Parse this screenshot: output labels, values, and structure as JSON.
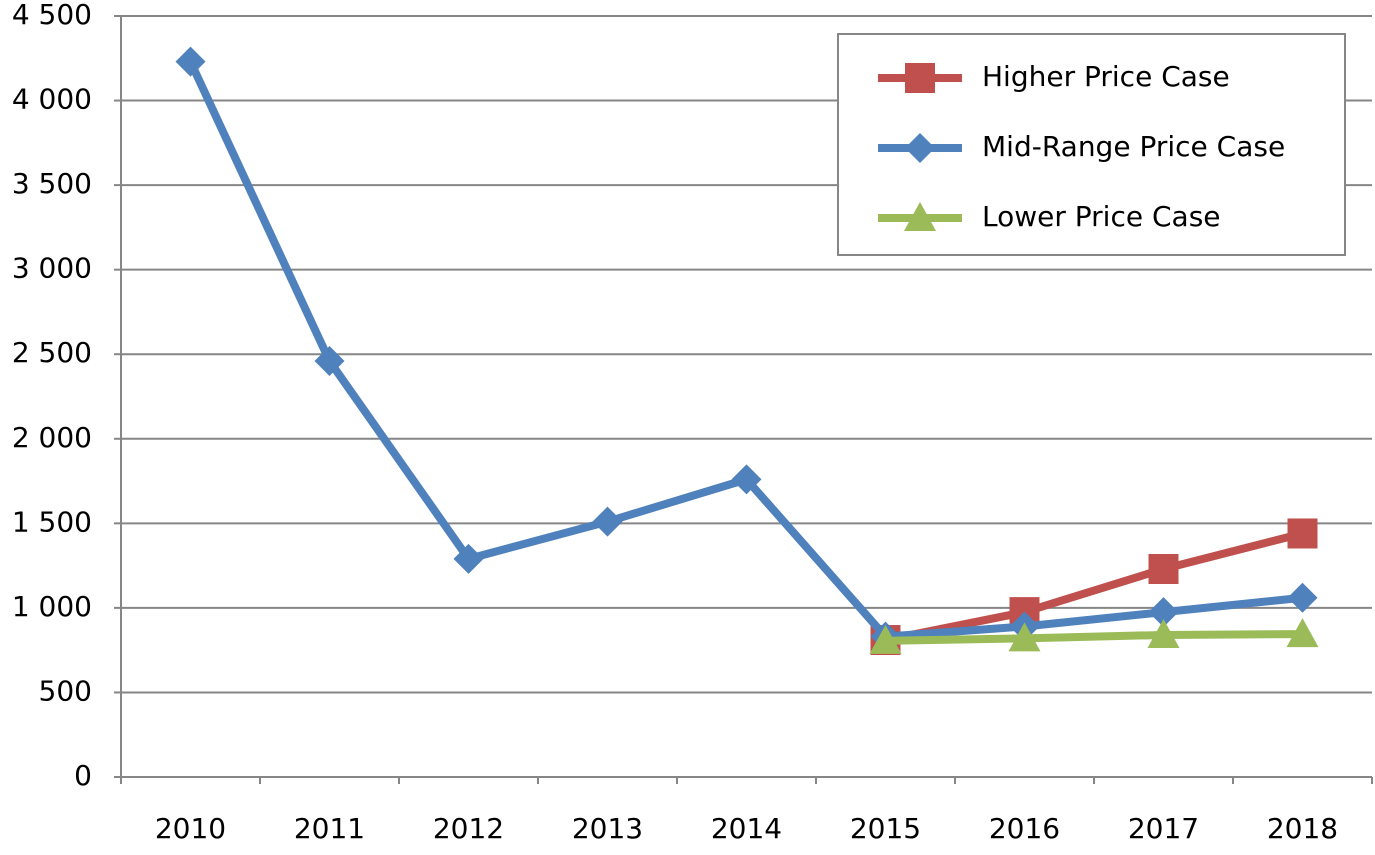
{
  "chart_data": {
    "type": "line",
    "categories": [
      "2010",
      "2011",
      "2012",
      "2013",
      "2014",
      "2015",
      "2016",
      "2017",
      "2018"
    ],
    "series": [
      {
        "name": "Higher Price Case",
        "color": "#c0504d",
        "marker": "square",
        "values": [
          null,
          null,
          null,
          null,
          null,
          810,
          975,
          1230,
          1440
        ]
      },
      {
        "name": "Mid-Range Price Case",
        "color": "#4f81bd",
        "marker": "diamond",
        "values": [
          4230,
          2460,
          1290,
          1510,
          1760,
          830,
          890,
          975,
          1060
        ]
      },
      {
        "name": "Lower Price Case",
        "color": "#9bbb59",
        "marker": "triangle",
        "values": [
          null,
          null,
          null,
          null,
          null,
          805,
          820,
          840,
          845
        ]
      }
    ],
    "ylim": [
      0,
      4500
    ],
    "yticks": [
      0,
      500,
      {
        "value": 1000,
        "label": "1 000"
      },
      {
        "value": 1500,
        "label": "1 500"
      },
      {
        "value": 2000,
        "label": "2 000"
      },
      {
        "value": 2500,
        "label": "2 500"
      },
      {
        "value": 3000,
        "label": "3 000"
      },
      {
        "value": 3500,
        "label": "3 500"
      },
      {
        "value": 4000,
        "label": "4 000"
      },
      {
        "value": 4500,
        "label": "4 500"
      }
    ],
    "grid": true,
    "legend": "upper right"
  }
}
